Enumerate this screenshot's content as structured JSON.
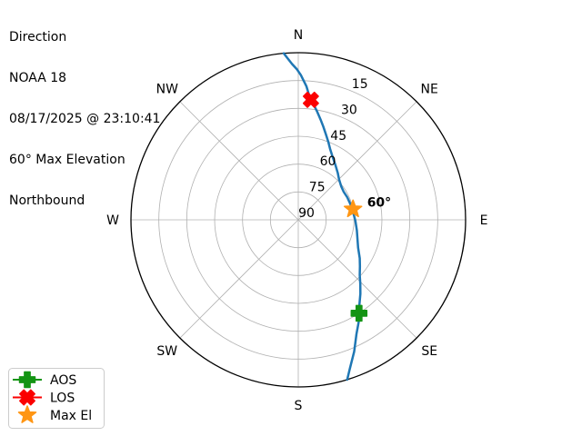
{
  "info": {
    "title": "Direction",
    "satellite": "NOAA 18",
    "timestamp": "08/17/2025 @ 23:10:41",
    "max_elevation_text": "60° Max Elevation",
    "heading": "Northbound"
  },
  "chart_data": {
    "type": "polar",
    "description": "Satellite pass sky-plot: azimuth around compass, elevation 0 deg at horizon (outer ring) to 90 deg at zenith (center)",
    "axes": {
      "angular": "azimuth-compass",
      "radial": "elevation-degrees",
      "elevation_range": [
        0,
        90
      ],
      "elevation_ticks": [
        15,
        30,
        45,
        60,
        75,
        90
      ],
      "tick_label_azimuth_deg": 22.5,
      "grid": true
    },
    "compass": [
      {
        "label": "N",
        "azimuth_deg": 0
      },
      {
        "label": "NE",
        "azimuth_deg": 45
      },
      {
        "label": "E",
        "azimuth_deg": 90
      },
      {
        "label": "SE",
        "azimuth_deg": 135
      },
      {
        "label": "S",
        "azimuth_deg": 180
      },
      {
        "label": "SW",
        "azimuth_deg": 225
      },
      {
        "label": "W",
        "azimuth_deg": 270
      },
      {
        "label": "NW",
        "azimuth_deg": 315
      }
    ],
    "track_az_el": [
      [
        163,
        0
      ],
      [
        161,
        5
      ],
      [
        157,
        13
      ],
      [
        153,
        21
      ],
      [
        149.5,
        26
      ],
      [
        147,
        30
      ],
      [
        144,
        34
      ],
      [
        140,
        38
      ],
      [
        136,
        42
      ],
      [
        132,
        45.5
      ],
      [
        127,
        48.5
      ],
      [
        122,
        51
      ],
      [
        115,
        54.5
      ],
      [
        108,
        56.5
      ],
      [
        100,
        58
      ],
      [
        91,
        59.3
      ],
      [
        85,
        60
      ],
      [
        79,
        60.3
      ],
      [
        72,
        60.8
      ],
      [
        65,
        61
      ],
      [
        58,
        61.3
      ],
      [
        52,
        60.7
      ],
      [
        45,
        59
      ],
      [
        40,
        57
      ],
      [
        34,
        54.3
      ],
      [
        28,
        51
      ],
      [
        24,
        48
      ],
      [
        21,
        45
      ],
      [
        18,
        41.8
      ],
      [
        15,
        38
      ],
      [
        12.5,
        34.7
      ],
      [
        10,
        31
      ],
      [
        8,
        28
      ],
      [
        6,
        25
      ],
      [
        4.6,
        21.5
      ],
      [
        3.5,
        18
      ],
      [
        2.2,
        15
      ],
      [
        1,
        12
      ],
      [
        359.5,
        9
      ],
      [
        357.7,
        6
      ],
      [
        356.3,
        3
      ],
      [
        355,
        0
      ]
    ],
    "markers": {
      "aos": {
        "azimuth_deg": 147,
        "elevation_deg": 30
      },
      "los": {
        "azimuth_deg": 6,
        "elevation_deg": 25
      },
      "max_el": {
        "azimuth_deg": 79,
        "elevation_deg": 60,
        "annotation": "60°"
      }
    }
  },
  "legend": {
    "items": [
      {
        "id": "aos",
        "label": "AOS",
        "marker": "plus-icon",
        "has_line": true
      },
      {
        "id": "los",
        "label": "LOS",
        "marker": "x-icon",
        "has_line": true
      },
      {
        "id": "max_el",
        "label": "Max El",
        "marker": "star-icon",
        "has_line": false
      }
    ]
  },
  "colors": {
    "track": "#1f77b4",
    "grid": "#b0b0b0",
    "outline": "#000000",
    "aos": "#149414",
    "los": "#fb0000",
    "max_el": "#ff9614",
    "legend_border": "#cccccc",
    "background": "#ffffff"
  }
}
